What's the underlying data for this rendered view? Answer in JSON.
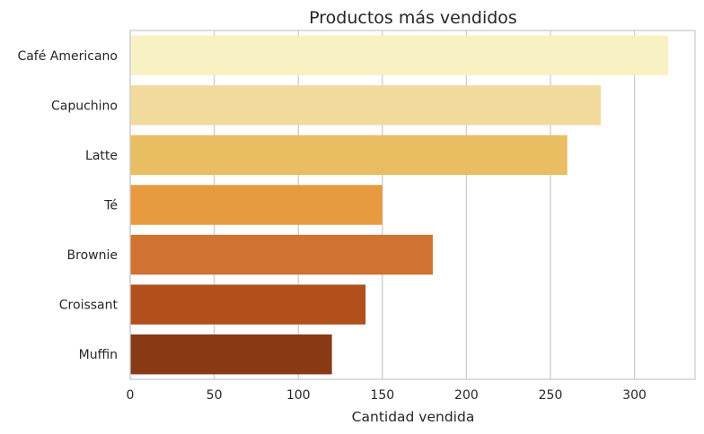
{
  "chart_data": {
    "type": "bar",
    "orientation": "horizontal",
    "title": "Productos más vendidos",
    "xlabel": "Cantidad vendida",
    "ylabel": "",
    "categories": [
      "Café Americano",
      "Capuchino",
      "Latte",
      "Té",
      "Brownie",
      "Croissant",
      "Muffin"
    ],
    "values": [
      320,
      280,
      260,
      150,
      180,
      140,
      120
    ],
    "colors": [
      "#f8f1c3",
      "#f1da9c",
      "#e9bd62",
      "#e89a41",
      "#d07332",
      "#b1501d",
      "#883a17"
    ],
    "xlim": [
      0,
      336
    ],
    "xticks": [
      0,
      50,
      100,
      150,
      200,
      250,
      300
    ],
    "grid": true
  }
}
